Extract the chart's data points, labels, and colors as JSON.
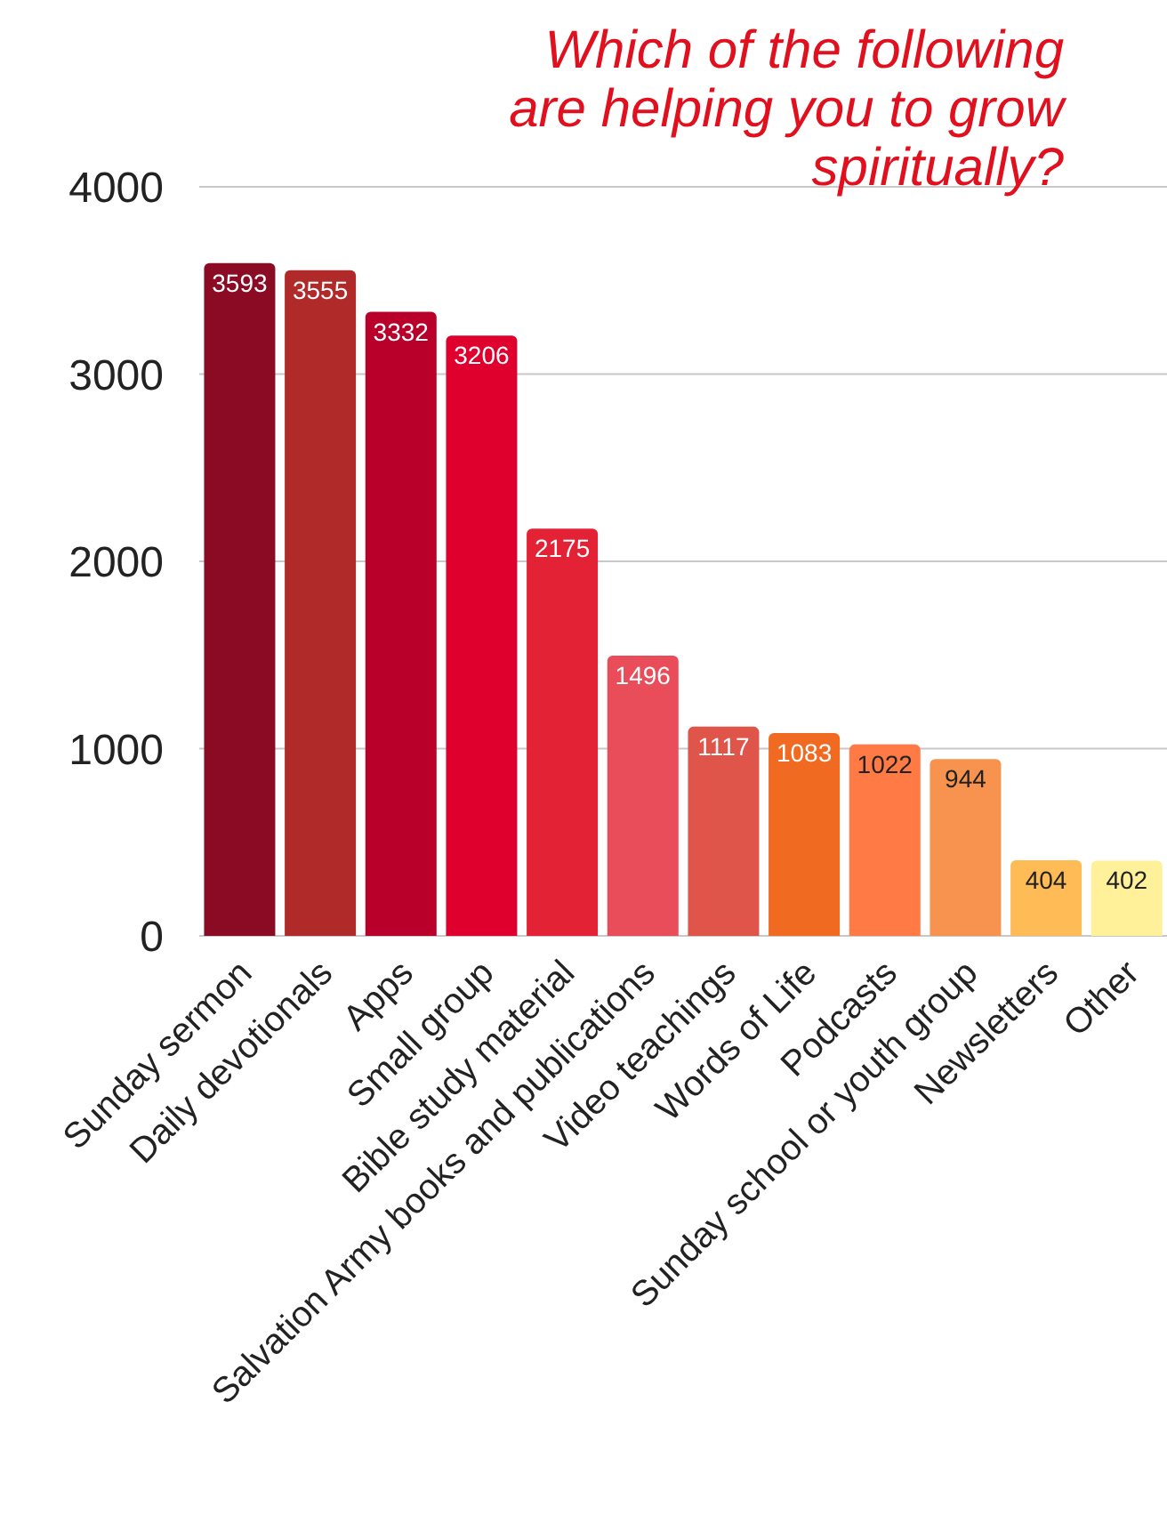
{
  "chart_data": {
    "type": "bar",
    "title": "Which of the following are helping you to grow spiritually?",
    "categories": [
      "Sunday sermon",
      "Daily devotionals",
      "Apps",
      "Small group",
      "Bible study material",
      "Salvation Army books and publications",
      "Video teachings",
      "Words of Life",
      "Podcasts",
      "Sunday school or youth group",
      "Newsletters",
      "Other"
    ],
    "values": [
      3593,
      3555,
      3332,
      3206,
      2175,
      1496,
      1117,
      1083,
      1022,
      944,
      404,
      402
    ],
    "colors": [
      "#8b0a24",
      "#b02a2a",
      "#b8002a",
      "#e0002e",
      "#e32236",
      "#ea4d5a",
      "#e0554a",
      "#f06a22",
      "#ff7a45",
      "#f7934f",
      "#ffbb55",
      "#fff09a"
    ],
    "ylim": [
      0,
      4000
    ],
    "yticks": [
      0,
      1000,
      2000,
      3000,
      4000
    ],
    "grid": "y",
    "data_labels": true
  }
}
